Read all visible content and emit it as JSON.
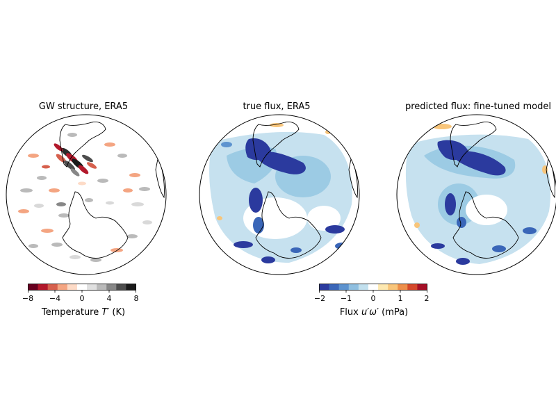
{
  "panels": [
    {
      "title": "GW structure, ERA5"
    },
    {
      "title": "true flux, ERA5"
    },
    {
      "title": "predicted flux: fine-tuned model"
    }
  ],
  "colorbars": [
    {
      "ticks": [
        "−8",
        "−4",
        "0",
        "4",
        "8"
      ],
      "label_prefix": "Temperature ",
      "label_symbol": "T′",
      "label_suffix": " (K)",
      "colors": [
        "#67001f",
        "#b2182b",
        "#d6604d",
        "#f4a582",
        "#fddbc7",
        "#ffffff",
        "#e0e0e0",
        "#bababa",
        "#878787",
        "#4d4d4d",
        "#1a1a1a"
      ]
    },
    {
      "ticks": [
        "−2",
        "−1",
        "0",
        "1",
        "2"
      ],
      "label_prefix": "Flux ",
      "label_symbol": "u′ω′",
      "label_suffix": " (mPa)",
      "colors": [
        "#2b3a9e",
        "#3a66b8",
        "#5d93cf",
        "#8fbfe0",
        "#c2e0ee",
        "#ffffff",
        "#fde8b0",
        "#f8c57a",
        "#ed8e4a",
        "#d5482b",
        "#a50f26"
      ]
    }
  ]
}
